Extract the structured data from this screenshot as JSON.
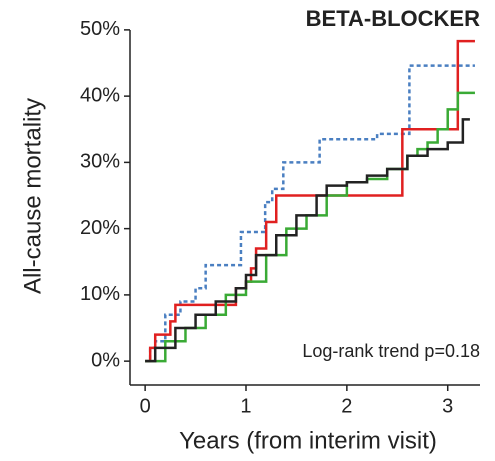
{
  "chart_data": {
    "type": "step",
    "title": "BETA-BLOCKER",
    "xlabel": "Years (from interim visit)",
    "ylabel": "All-cause mortality",
    "annotation": "Log-rank trend p=0.18",
    "xlim": [
      -0.15,
      3.32
    ],
    "ylim": [
      -3.6,
      53
    ],
    "xticks": [
      0,
      1,
      2,
      3
    ],
    "yticks": [
      {
        "value": 0,
        "label": "0%"
      },
      {
        "value": 10,
        "label": "10%"
      },
      {
        "value": 20,
        "label": "20%"
      },
      {
        "value": 30,
        "label": "30%"
      },
      {
        "value": 40,
        "label": "40%"
      },
      {
        "value": 50,
        "label": "50%"
      }
    ],
    "series": [
      {
        "color": "#4a7fc1",
        "dash": "4 3",
        "x": [
          0,
          0.05,
          0.1,
          0.2,
          0.35,
          0.5,
          0.6,
          0.95,
          1.19,
          1.26,
          1.37,
          1.73,
          2.3,
          2.62,
          3.27
        ],
        "values": [
          0,
          2,
          3,
          7,
          9,
          11,
          14.5,
          19.5,
          24,
          26,
          30,
          33.5,
          34.3,
          44.6,
          44.6
        ]
      },
      {
        "color": "#e02020",
        "x": [
          0,
          0.05,
          0.1,
          0.25,
          0.3,
          0.9,
          1.0,
          1.05,
          1.1,
          1.2,
          1.3,
          2.55,
          3.1,
          3.27
        ],
        "values": [
          0,
          2,
          4,
          6,
          8.5,
          11,
          12,
          14,
          17,
          21,
          25,
          35,
          48.3,
          48.3
        ]
      },
      {
        "color": "#3aaa35",
        "x": [
          0,
          0.2,
          0.4,
          0.6,
          0.8,
          1.0,
          1.2,
          1.4,
          1.6,
          1.8,
          2.0,
          2.2,
          2.4,
          2.6,
          2.7,
          2.8,
          2.9,
          3.0,
          3.1,
          3.27
        ],
        "values": [
          0,
          3,
          5,
          7,
          10,
          12,
          16,
          20,
          22,
          25,
          27,
          27.5,
          29,
          31,
          32,
          33,
          35,
          38,
          40.5,
          40.5
        ]
      },
      {
        "color": "#222222",
        "x": [
          0,
          0.1,
          0.3,
          0.5,
          0.7,
          0.9,
          1.0,
          1.1,
          1.3,
          1.5,
          1.7,
          1.8,
          2.0,
          2.2,
          2.4,
          2.6,
          2.8,
          3.0,
          3.15,
          3.22
        ],
        "values": [
          0,
          2,
          5,
          7,
          9,
          11,
          13,
          16,
          19,
          22,
          25,
          26.5,
          27,
          28,
          29,
          31,
          32,
          33,
          36.5,
          36.5
        ]
      }
    ]
  }
}
